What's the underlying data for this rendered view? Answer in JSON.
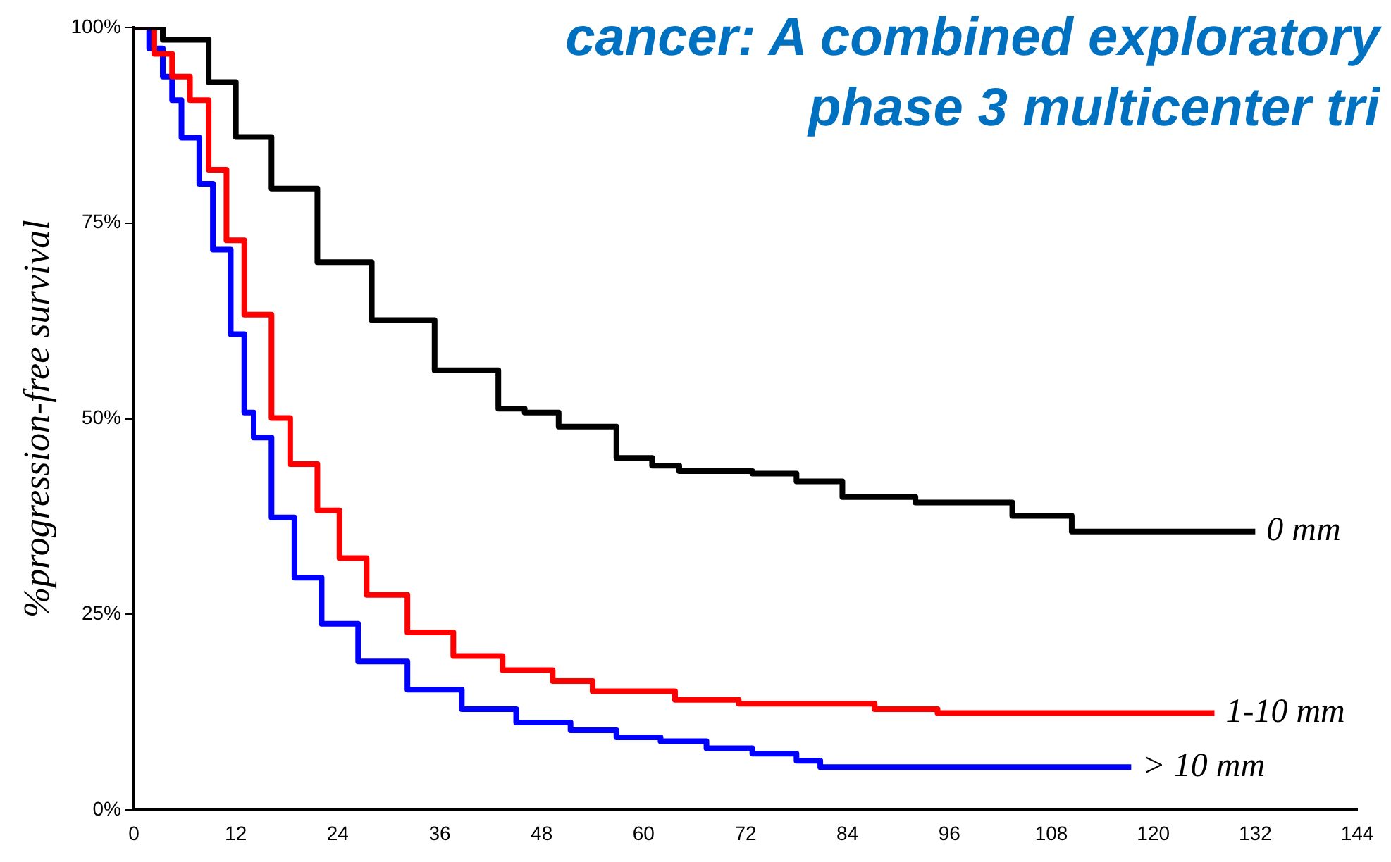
{
  "chart_data": {
    "type": "step",
    "title": "cancer: A combined exploratory\nphase 3 multicenter tri",
    "ylabel": "%progression-free survival",
    "xlim": [
      0,
      144
    ],
    "xticks": [
      0,
      12,
      24,
      36,
      48,
      60,
      72,
      84,
      96,
      108,
      120,
      132,
      144
    ],
    "ylim": [
      0,
      100
    ],
    "yticks": [
      {
        "value": 0,
        "label": "0%"
      },
      {
        "value": 25,
        "label": "25%"
      },
      {
        "value": 50,
        "label": "50%"
      },
      {
        "value": 75,
        "label": "75%"
      },
      {
        "value": 100,
        "label": "100%"
      }
    ],
    "grid": false,
    "legend": false,
    "marker": "none",
    "series": [
      {
        "name": "0 mm",
        "color": "#000000",
        "x": [
          0,
          3.4,
          8.8,
          12,
          16.2,
          21.6,
          28,
          35.4,
          42.9,
          46,
          50,
          56.8,
          61,
          64.2,
          72.8,
          78,
          83.4,
          92,
          103.4,
          110.4,
          132
        ],
        "values": [
          100,
          98.4,
          93,
          86,
          79.4,
          70,
          62.6,
          56.2,
          51.3,
          50.8,
          49,
          45,
          44,
          43.3,
          43,
          42,
          40,
          39.3,
          37.6,
          35.6,
          35.6
        ]
      },
      {
        "name": "1-10 mm",
        "color": "#ff0000",
        "x": [
          0,
          2.4,
          4.5,
          6.6,
          8.8,
          10.9,
          13,
          16.2,
          18.4,
          21.6,
          24.2,
          27.4,
          32.2,
          37.6,
          43.4,
          49.3,
          54,
          63.7,
          71.2,
          87.2,
          94.6,
          127.2
        ],
        "values": [
          100,
          96.6,
          93.7,
          90.7,
          81.8,
          72.8,
          63.3,
          50.1,
          44.2,
          38.3,
          32.2,
          27.5,
          22.7,
          19.7,
          17.9,
          16.5,
          15.2,
          14.1,
          13.6,
          12.9,
          12.4,
          12.4
        ]
      },
      {
        "name": "> 10 mm",
        "color": "#0000ff",
        "x": [
          0,
          1.8,
          3.4,
          4.5,
          5.6,
          7.7,
          9.3,
          11.4,
          13,
          14.1,
          16.2,
          18.9,
          22.1,
          26.4,
          32.2,
          38.6,
          45,
          51.4,
          56.8,
          62,
          67.4,
          72.8,
          78,
          80.8,
          117.4
        ],
        "values": [
          100,
          97.3,
          93.7,
          90.7,
          85.9,
          80,
          71.6,
          60.8,
          50.8,
          47.6,
          37.4,
          29.7,
          23.8,
          19,
          15.4,
          12.9,
          11.2,
          10.2,
          9.3,
          8.8,
          7.9,
          7.2,
          6.3,
          5.5,
          5.5
        ]
      }
    ]
  }
}
